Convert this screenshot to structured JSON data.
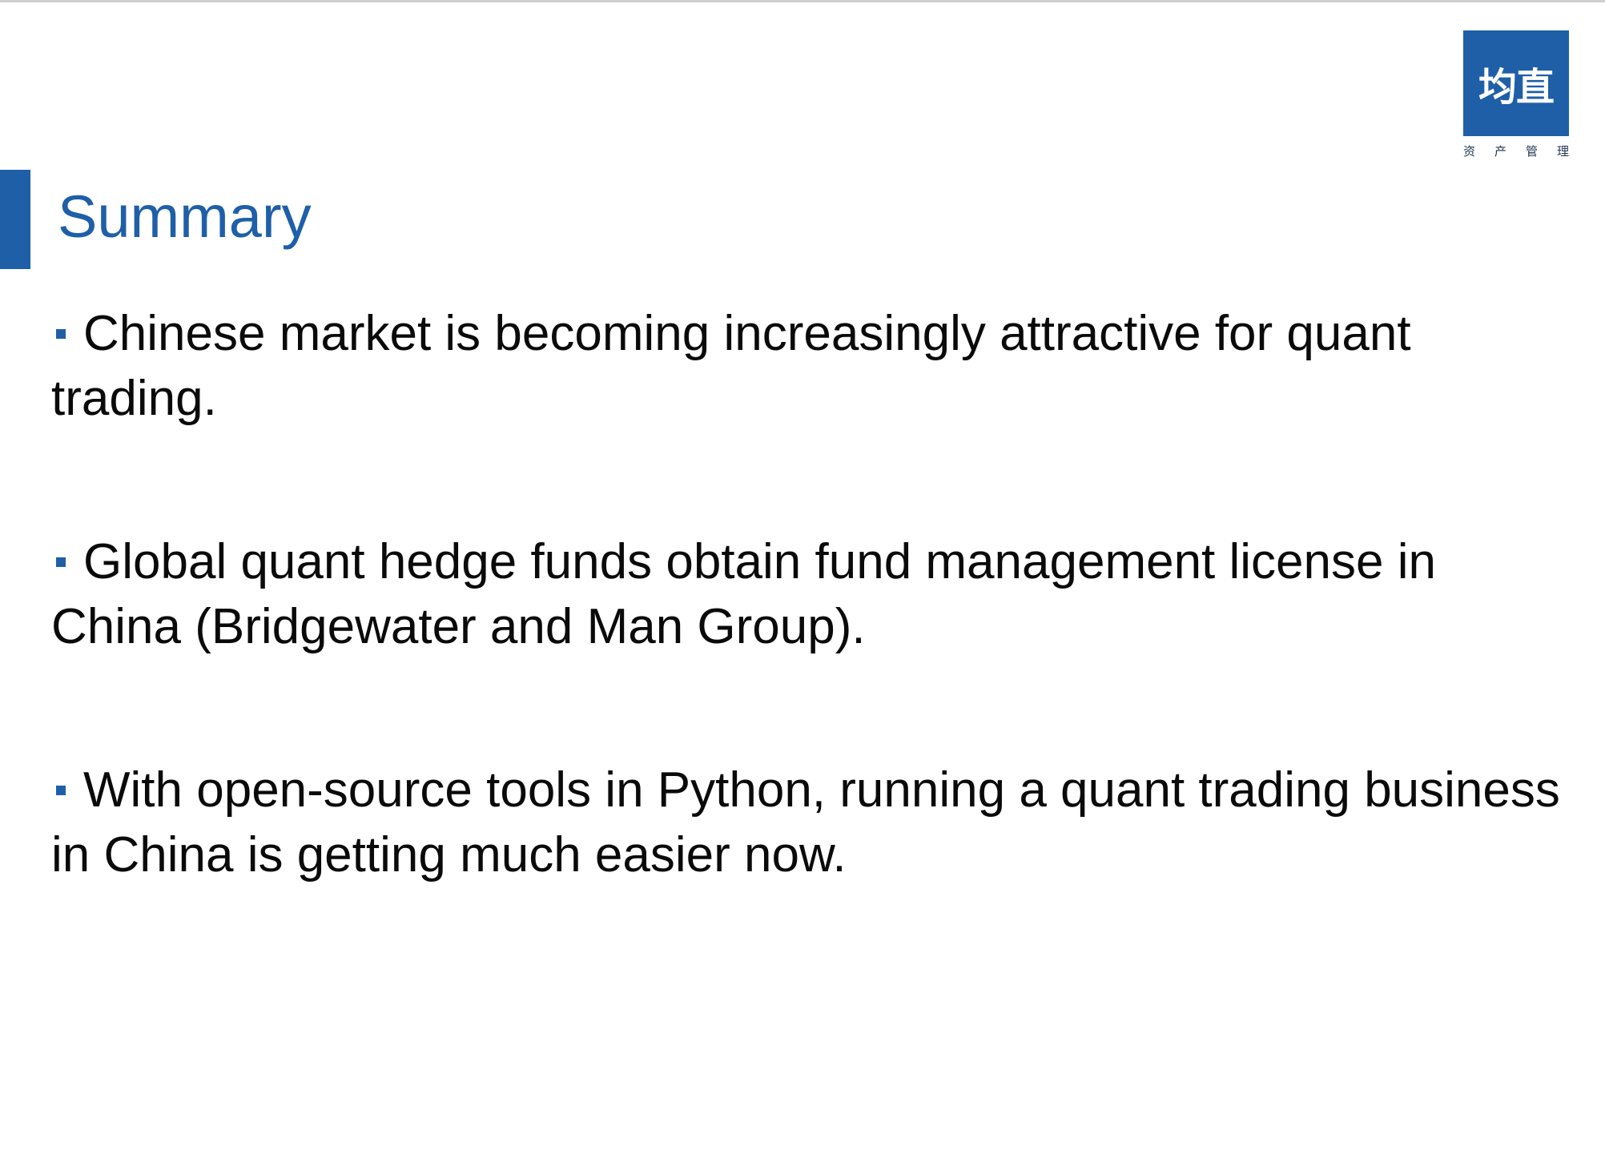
{
  "logo": {
    "mark_text": "均直",
    "subtitle_chars": [
      "资",
      "产",
      "管",
      "理"
    ]
  },
  "slide": {
    "title": "Summary",
    "bullets": [
      {
        "text": "Chinese market is becoming increasingly attractive for quant trading."
      },
      {
        "text": "Global quant hedge funds obtain fund management license in China (Bridgewater and Man Group)."
      },
      {
        "text": "With open-source tools in Python, running a quant trading business in China is getting much easier now."
      }
    ]
  },
  "colors": {
    "accent": "#1e5fa8",
    "text": "#0a0a0a",
    "background": "#ffffff"
  }
}
